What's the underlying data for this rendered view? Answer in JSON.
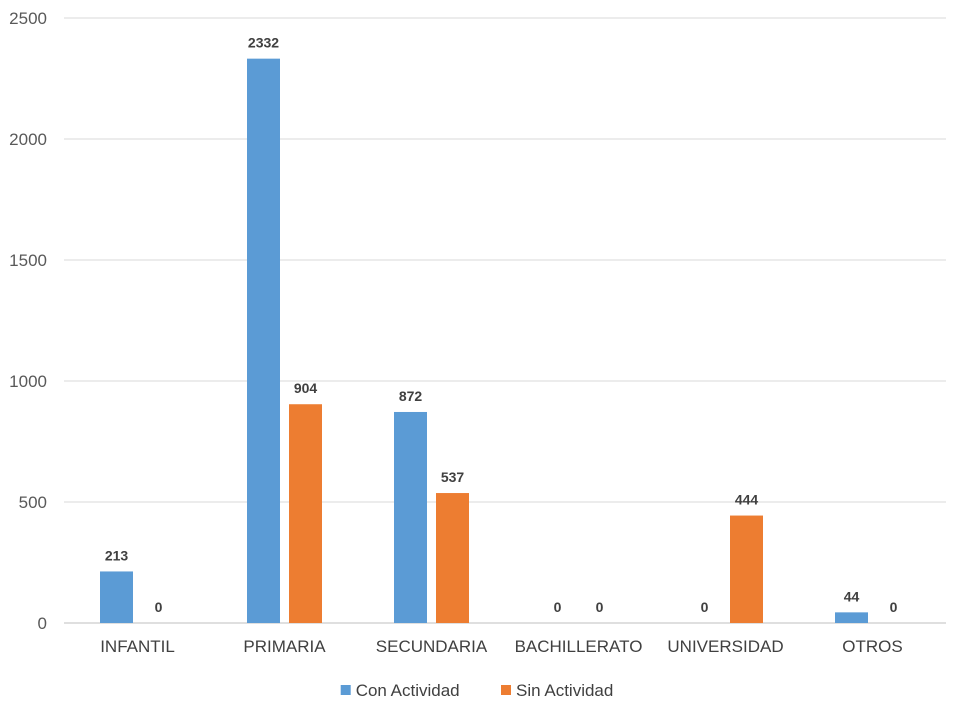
{
  "chart_data": {
    "type": "bar",
    "categories": [
      "INFANTIL",
      "PRIMARIA",
      "SECUNDARIA",
      "BACHILLERATO",
      "UNIVERSIDAD",
      "OTROS"
    ],
    "series": [
      {
        "name": "Con Actividad",
        "color": "#5B9BD5",
        "values": [
          213,
          2332,
          872,
          0,
          0,
          44
        ]
      },
      {
        "name": "Sin Actividad",
        "color": "#ED7D31",
        "values": [
          0,
          904,
          537,
          0,
          444,
          0
        ]
      }
    ],
    "ylim": [
      0,
      2500
    ],
    "yticks": [
      0,
      500,
      1000,
      1500,
      2000,
      2500
    ],
    "grid": true,
    "legend": "bottom-center",
    "title": "",
    "xlabel": "",
    "ylabel": ""
  }
}
